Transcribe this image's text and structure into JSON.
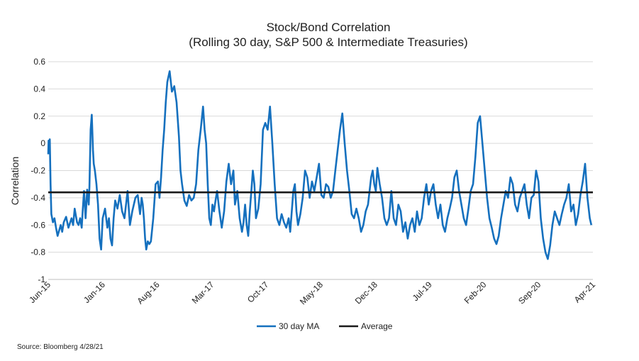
{
  "chart_data": {
    "type": "line",
    "title": "Stock/Bond Correlation",
    "subtitle": "(Rolling 30 day, S&P 500 & Intermediate Treasuries)",
    "ylabel": "Correlation",
    "ylim": [
      -1,
      0.6
    ],
    "y_ticks": [
      "0.6",
      "0.4",
      "0.2",
      "0",
      "-0.2",
      "-0.4",
      "-0.6",
      "-0.8",
      "-1"
    ],
    "x_ticks": [
      "Jun-15",
      "Jan-16",
      "Aug-16",
      "Mar-17",
      "Oct-17",
      "May-18",
      "Dec-18",
      "Jul-19",
      "Feb-20",
      "Sep-20",
      "Apr-21"
    ],
    "grid": "horizontal",
    "legend": "bottom",
    "series": [
      {
        "name": "30 day MA",
        "color": "#1570be",
        "x": [
          0.0,
          0.05,
          0.1,
          0.2,
          0.25,
          0.3,
          0.4,
          0.6,
          0.8,
          1.0,
          1.2,
          1.4,
          1.6,
          1.8,
          2.0,
          2.3,
          2.6,
          3.0,
          3.2,
          3.4,
          3.7,
          3.9,
          4.1,
          4.3,
          4.45,
          4.6,
          4.8,
          5.0,
          5.2,
          5.3,
          5.45,
          5.6,
          5.75,
          5.85,
          6.0,
          6.2,
          6.4,
          6.6,
          6.8,
          7.0,
          7.3,
          7.6,
          7.8,
          8.0,
          8.2,
          8.4,
          8.6,
          8.9,
          9.2,
          9.5,
          9.8,
          10.0,
          10.2,
          10.5,
          10.8,
          11.2,
          11.5,
          11.8,
          12.0,
          12.15,
          12.3,
          12.45,
          12.6,
          12.8,
          13.0,
          13.2,
          13.5,
          13.8,
          14.1,
          14.3,
          14.5,
          14.7,
          14.9,
          15.1,
          15.3,
          15.6,
          15.9,
          16.2,
          16.5,
          16.8,
          17.0,
          17.2,
          17.5,
          17.8,
          18.1,
          18.4,
          18.7,
          19.0,
          19.3,
          19.6,
          19.9,
          20.1,
          20.3,
          20.5,
          20.7,
          20.9,
          21.1,
          21.3,
          21.5,
          21.7,
          22.0,
          22.3,
          22.6,
          22.9,
          23.2,
          23.5,
          23.8,
          24.0,
          24.3,
          24.6,
          24.9,
          25.1,
          25.3,
          25.5,
          25.7,
          25.9,
          26.1,
          26.3,
          26.5,
          26.7,
          27.0,
          27.3,
          27.6,
          27.9,
          28.2,
          28.5,
          28.8,
          29.1,
          29.4,
          29.7,
          30.0,
          30.3,
          30.6,
          30.9,
          31.1,
          31.3,
          31.5,
          31.7,
          31.9,
          32.1,
          32.4,
          32.7,
          33.0,
          33.3,
          33.6,
          33.9,
          34.2,
          34.5,
          34.8,
          35.1,
          35.4,
          35.7,
          36.0,
          36.3,
          36.6,
          36.9,
          37.2,
          37.5,
          37.8,
          38.1,
          38.4,
          38.7,
          39.0,
          39.3,
          39.6,
          39.9,
          40.2,
          40.5,
          40.8,
          41.1,
          41.3,
          41.5,
          41.7,
          41.9,
          42.1,
          42.3,
          42.6,
          42.9,
          43.2,
          43.5,
          43.8,
          44.1,
          44.4,
          44.7,
          45.0,
          45.3,
          45.6,
          45.9,
          46.2,
          46.5,
          46.8,
          47.1,
          47.4,
          47.7,
          48.0,
          48.3,
          48.6,
          48.9,
          49.2,
          49.5,
          49.8,
          50.1,
          50.4,
          50.7,
          51.0,
          51.3,
          51.6,
          51.9,
          52.2,
          52.5,
          52.8,
          53.1,
          53.4,
          53.7,
          54.0,
          54.3,
          54.6,
          54.9,
          55.2,
          55.5,
          55.8,
          56.1,
          56.4,
          56.7,
          57.0,
          57.3,
          57.6,
          57.9,
          58.2,
          58.5,
          58.8,
          59.1,
          59.4,
          59.7,
          60.0,
          60.3,
          60.6,
          60.9,
          61.2,
          61.5,
          61.8,
          62.1,
          62.4,
          62.7,
          63.0,
          63.3,
          63.6,
          63.9,
          64.2,
          64.5,
          64.8,
          65.1,
          65.4,
          65.7,
          66.0,
          66.3,
          66.6,
          66.9,
          67.2,
          67.5,
          67.8,
          68.1,
          68.4,
          68.7,
          69.0,
          69.3,
          69.6,
          69.8
        ],
        "y": [
          -0.08,
          0.02,
          -0.02,
          0.03,
          -0.12,
          -0.3,
          -0.52,
          -0.58,
          -0.55,
          -0.62,
          -0.68,
          -0.64,
          -0.6,
          -0.65,
          -0.58,
          -0.54,
          -0.62,
          -0.55,
          -0.6,
          -0.48,
          -0.58,
          -0.6,
          -0.55,
          -0.62,
          -0.48,
          -0.35,
          -0.55,
          -0.34,
          -0.45,
          -0.32,
          0.1,
          0.21,
          -0.05,
          -0.15,
          -0.2,
          -0.3,
          -0.45,
          -0.7,
          -0.78,
          -0.55,
          -0.48,
          -0.62,
          -0.55,
          -0.7,
          -0.75,
          -0.55,
          -0.42,
          -0.48,
          -0.38,
          -0.5,
          -0.55,
          -0.45,
          -0.35,
          -0.6,
          -0.5,
          -0.4,
          -0.38,
          -0.52,
          -0.4,
          -0.45,
          -0.55,
          -0.7,
          -0.78,
          -0.72,
          -0.74,
          -0.72,
          -0.55,
          -0.3,
          -0.28,
          -0.4,
          -0.25,
          -0.05,
          0.1,
          0.3,
          0.45,
          0.53,
          0.38,
          0.42,
          0.3,
          0.05,
          -0.2,
          -0.3,
          -0.42,
          -0.46,
          -0.38,
          -0.42,
          -0.4,
          -0.3,
          -0.05,
          0.1,
          0.27,
          0.1,
          0.0,
          -0.3,
          -0.55,
          -0.6,
          -0.45,
          -0.5,
          -0.42,
          -0.35,
          -0.5,
          -0.62,
          -0.5,
          -0.28,
          -0.15,
          -0.3,
          -0.2,
          -0.45,
          -0.35,
          -0.55,
          -0.65,
          -0.58,
          -0.45,
          -0.6,
          -0.68,
          -0.5,
          -0.35,
          -0.2,
          -0.3,
          -0.55,
          -0.48,
          -0.3,
          0.1,
          0.15,
          0.1,
          0.27,
          0.0,
          -0.3,
          -0.55,
          -0.6,
          -0.52,
          -0.58,
          -0.62,
          -0.55,
          -0.65,
          -0.5,
          -0.35,
          -0.3,
          -0.5,
          -0.6,
          -0.52,
          -0.4,
          -0.2,
          -0.25,
          -0.4,
          -0.28,
          -0.35,
          -0.25,
          -0.15,
          -0.38,
          -0.4,
          -0.3,
          -0.32,
          -0.4,
          -0.35,
          -0.2,
          -0.05,
          0.1,
          0.22,
          0.0,
          -0.2,
          -0.35,
          -0.52,
          -0.55,
          -0.48,
          -0.55,
          -0.65,
          -0.6,
          -0.5,
          -0.45,
          -0.35,
          -0.25,
          -0.2,
          -0.3,
          -0.35,
          -0.18,
          -0.3,
          -0.4,
          -0.55,
          -0.6,
          -0.55,
          -0.35,
          -0.55,
          -0.6,
          -0.45,
          -0.5,
          -0.65,
          -0.58,
          -0.7,
          -0.6,
          -0.55,
          -0.65,
          -0.5,
          -0.6,
          -0.55,
          -0.4,
          -0.3,
          -0.45,
          -0.35,
          -0.3,
          -0.45,
          -0.55,
          -0.45,
          -0.6,
          -0.65,
          -0.55,
          -0.48,
          -0.4,
          -0.25,
          -0.2,
          -0.35,
          -0.45,
          -0.55,
          -0.6,
          -0.48,
          -0.35,
          -0.3,
          -0.1,
          0.15,
          0.2,
          0.0,
          -0.2,
          -0.4,
          -0.55,
          -0.62,
          -0.7,
          -0.74,
          -0.68,
          -0.55,
          -0.45,
          -0.35,
          -0.4,
          -0.25,
          -0.3,
          -0.45,
          -0.5,
          -0.4,
          -0.35,
          -0.3,
          -0.45,
          -0.55,
          -0.4,
          -0.38,
          -0.2,
          -0.28,
          -0.55,
          -0.7,
          -0.8,
          -0.85,
          -0.75,
          -0.6,
          -0.5,
          -0.55,
          -0.6,
          -0.52,
          -0.45,
          -0.4,
          -0.3,
          -0.5,
          -0.45,
          -0.6,
          -0.52,
          -0.38,
          -0.28,
          -0.15,
          -0.4,
          -0.55,
          -0.6
        ]
      },
      {
        "name": "Average",
        "color": "#1a1a1a",
        "values": [
          -0.36,
          -0.36
        ]
      }
    ]
  },
  "source": "Source: Bloomberg 4/28/21"
}
